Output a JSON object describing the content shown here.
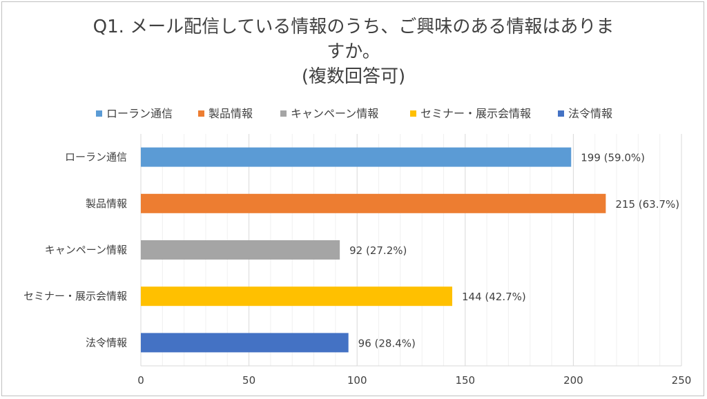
{
  "chart_data": {
    "type": "bar",
    "orientation": "horizontal",
    "title_lines": [
      "Q1. メール配信している情報のうち、ご興味のある情報はありま",
      "すか。",
      "(複数回答可)"
    ],
    "categories": [
      "ローラン通信",
      "製品情報",
      "キャンペーン情報",
      "セミナー・展示会情報",
      "法令情報"
    ],
    "values": [
      199,
      215,
      92,
      144,
      96
    ],
    "data_labels": [
      "199 (59.0%)",
      "215 (63.7%)",
      "92 (27.2%)",
      "144 (42.7%)",
      "96 (28.4%)"
    ],
    "colors": [
      "#5b9bd5",
      "#ed7d31",
      "#a5a5a5",
      "#ffc000",
      "#4472c4"
    ],
    "xlim": [
      0,
      250
    ],
    "xticks": [
      0,
      50,
      100,
      150,
      200,
      250
    ],
    "legend": {
      "position": "top",
      "entries": [
        "ローラン通信",
        "製品情報",
        "キャンペーン情報",
        "セミナー・展示会情報",
        "法令情報"
      ]
    },
    "grid": "vertical"
  }
}
